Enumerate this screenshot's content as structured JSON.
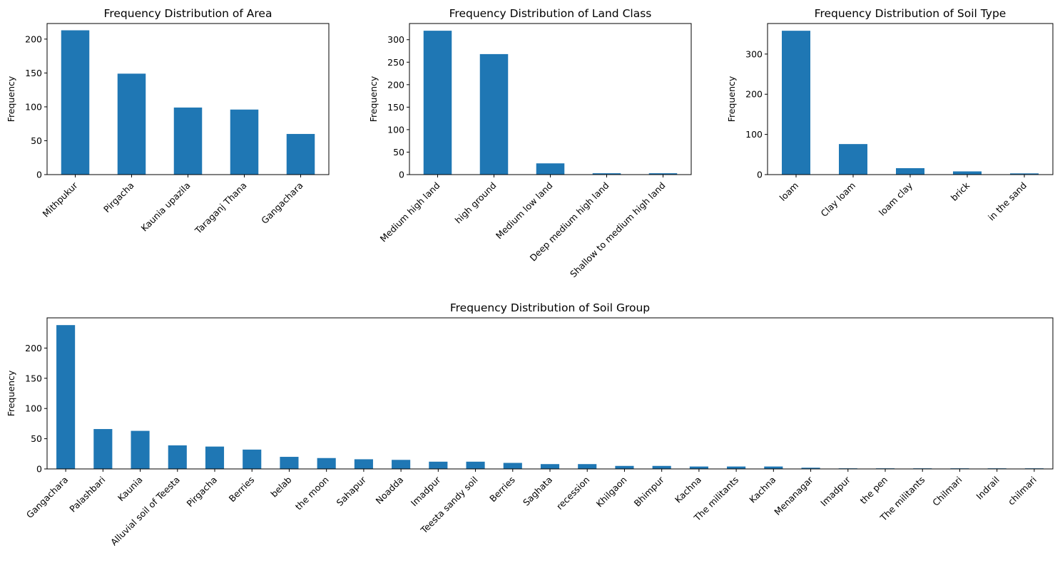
{
  "chart_data": [
    {
      "type": "bar",
      "title": "Frequency Distribution of Area",
      "xlabel": "",
      "ylabel": "Frequency",
      "categories": [
        "Mithpukur",
        "Pirgacha",
        "Kaunia upazila",
        "Taraganj Thana",
        "Gangachara"
      ],
      "values": [
        213,
        149,
        99,
        96,
        60
      ],
      "ylim": [
        0,
        223
      ],
      "yticks": [
        0,
        50,
        100,
        150,
        200
      ],
      "color": "#1f77b4",
      "grid": false
    },
    {
      "type": "bar",
      "title": "Frequency Distribution of Land Class",
      "xlabel": "",
      "ylabel": "Frequency",
      "categories": [
        "Medium high land",
        "high ground",
        "Medium low land",
        "Deep medium high land",
        "Shallow to medium high land"
      ],
      "values": [
        320,
        268,
        25,
        3,
        3
      ],
      "ylim": [
        0,
        336
      ],
      "yticks": [
        0,
        50,
        100,
        150,
        200,
        250,
        300
      ],
      "color": "#1f77b4",
      "grid": false
    },
    {
      "type": "bar",
      "title": "Frequency Distribution of Soil Type",
      "xlabel": "",
      "ylabel": "Frequency",
      "categories": [
        "loam",
        "Clay loam",
        "loam clay",
        "brick",
        "in the sand"
      ],
      "values": [
        358,
        76,
        16,
        8,
        3
      ],
      "ylim": [
        0,
        376
      ],
      "yticks": [
        0,
        100,
        200,
        300
      ],
      "color": "#1f77b4",
      "grid": false
    },
    {
      "type": "bar",
      "title": "Frequency Distribution of Soil Group",
      "xlabel": "",
      "ylabel": "Frequency",
      "categories": [
        "Gangachara",
        "Palashbari",
        "Kaunia",
        "Alluvial soil of Teesta",
        "Pirgacha",
        "Berries",
        "belab",
        "the moon",
        "Sahapur",
        "Noadda",
        "Imadpur",
        "Teesta sandy soil",
        "Berries",
        "Saghata",
        "recession",
        "Khilgaon",
        "Bhimpur",
        "Kachna",
        "The militants",
        "Kachna",
        "Menanagar",
        "Imadpur",
        "the pen",
        "The militants",
        "Chilmari",
        "Indrail",
        "chilmari"
      ],
      "values": [
        238,
        66,
        63,
        39,
        37,
        32,
        20,
        18,
        16,
        15,
        12,
        12,
        10,
        8,
        8,
        5,
        5,
        4,
        4,
        4,
        2,
        1,
        1,
        1,
        1,
        1,
        1
      ],
      "ylim": [
        0,
        250
      ],
      "yticks": [
        0,
        50,
        100,
        150,
        200
      ],
      "color": "#1f77b4",
      "grid": false
    }
  ]
}
